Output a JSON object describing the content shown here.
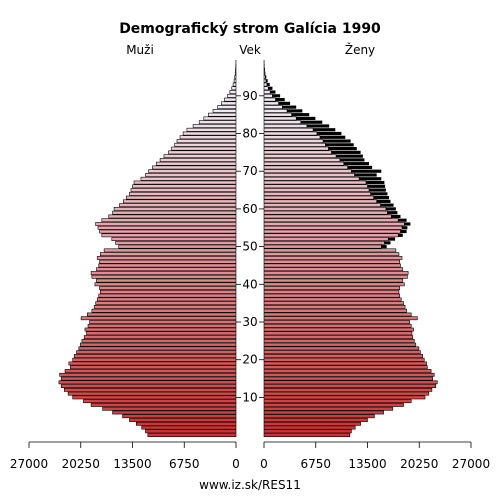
{
  "chart_data": {
    "type": "bar",
    "title": "Demografický strom Galícia 1990",
    "left_label": "Muži",
    "center_label": "Vek",
    "right_label": "Ženy",
    "footer": "www.iz.sk/RES11",
    "xlim": [
      0,
      27000
    ],
    "x_ticks_left": [
      "27000",
      "20250",
      "13500",
      "6750",
      "0"
    ],
    "x_ticks_right": [
      "0",
      "6750",
      "13500",
      "20250",
      "27000"
    ],
    "y_ticks": [
      "10",
      "20",
      "30",
      "40",
      "50",
      "60",
      "70",
      "80",
      "90"
    ],
    "age_min": 0,
    "age_max": 100,
    "colors": {
      "male_young": "#d03030",
      "male_old": "#f0e8f0",
      "female_young": "#d03030",
      "female_old": "#f0e8f0",
      "excess": "#000000",
      "outline": "#000000"
    },
    "series": [
      {
        "name": "Muži",
        "values": [
          11500,
          11800,
          12300,
          13000,
          13900,
          14800,
          16100,
          17400,
          18900,
          19900,
          21300,
          21900,
          22400,
          22800,
          23100,
          22800,
          23000,
          22300,
          21600,
          21800,
          21300,
          21100,
          20800,
          20500,
          20300,
          20100,
          19800,
          19500,
          19700,
          19300,
          19100,
          20200,
          19400,
          18800,
          18500,
          18300,
          18100,
          17900,
          17700,
          17800,
          18400,
          18200,
          18800,
          18900,
          18200,
          17900,
          17800,
          18100,
          17700,
          17200,
          15300,
          15700,
          16200,
          17500,
          17800,
          18000,
          18300,
          17500,
          16600,
          16100,
          15900,
          15200,
          14700,
          14300,
          13900,
          13700,
          13500,
          13300,
          12400,
          11800,
          11400,
          10900,
          10400,
          9900,
          9400,
          8800,
          8400,
          8000,
          7700,
          7300,
          6900,
          6400,
          5600,
          4800,
          4200,
          3600,
          3000,
          2400,
          1900,
          1500,
          1100,
          800,
          550,
          380,
          250,
          160,
          100,
          60,
          30,
          15
        ]
      },
      {
        "name": "Ženy",
        "values": [
          11200,
          11400,
          11900,
          12600,
          13500,
          14400,
          15600,
          16800,
          18200,
          19200,
          21000,
          21500,
          21900,
          22400,
          22600,
          22000,
          22200,
          21800,
          21300,
          21200,
          20900,
          20700,
          20400,
          20200,
          19800,
          19600,
          19400,
          19300,
          19500,
          19200,
          19000,
          20000,
          19200,
          18600,
          18400,
          18200,
          17900,
          17700,
          17600,
          17700,
          18300,
          18100,
          18700,
          18800,
          18100,
          17800,
          17700,
          18000,
          17600,
          17200,
          16000,
          16500,
          17100,
          18100,
          18600,
          18700,
          19100,
          18600,
          17800,
          17400,
          17200,
          16900,
          16500,
          16300,
          16100,
          15900,
          15800,
          15700,
          15300,
          14700,
          15300,
          14100,
          13700,
          13100,
          12900,
          12600,
          12100,
          11700,
          11300,
          10600,
          10100,
          9300,
          8500,
          7600,
          6700,
          5900,
          5000,
          4200,
          3400,
          2700,
          2100,
          1500,
          1100,
          750,
          480,
          300,
          180,
          100,
          50,
          25
        ]
      }
    ]
  }
}
